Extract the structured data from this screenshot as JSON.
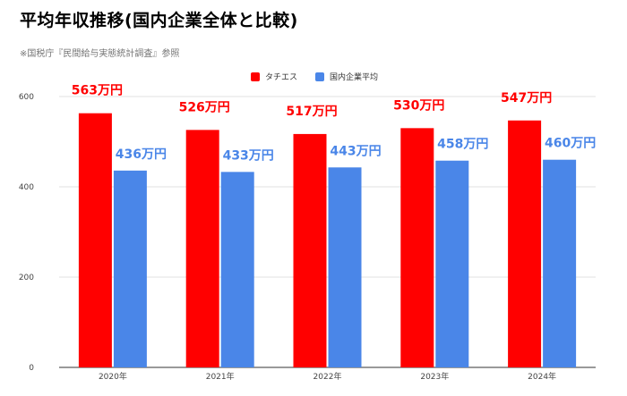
{
  "page": {
    "title": "平均年収推移(国内企業全体と比較)",
    "subtitle": "※国税庁『民間給与実態統計調査』参照"
  },
  "colors": {
    "tachiesu": "#ff0000",
    "domestic": "#4a86e8",
    "grid": "#e0e0e0",
    "axis_text": "#444444"
  },
  "chart_data": {
    "type": "bar",
    "categories": [
      "2020年",
      "2021年",
      "2022年",
      "2023年",
      "2024年"
    ],
    "series": [
      {
        "name": "タチエス",
        "values": [
          563,
          526,
          517,
          530,
          547
        ],
        "labels": [
          "563万円",
          "526万円",
          "517万円",
          "530万円",
          "547万円"
        ],
        "color": "#ff0000"
      },
      {
        "name": "国内企業平均",
        "values": [
          436,
          433,
          443,
          458,
          460
        ],
        "labels": [
          "436万円",
          "433万円",
          "443万円",
          "458万円",
          "460万円"
        ],
        "color": "#4a86e8"
      }
    ],
    "ylim": [
      0,
      600
    ],
    "yticks": [
      0,
      200,
      400,
      600
    ],
    "grid": true,
    "legend": "top-center",
    "xlabel": "",
    "ylabel": ""
  }
}
